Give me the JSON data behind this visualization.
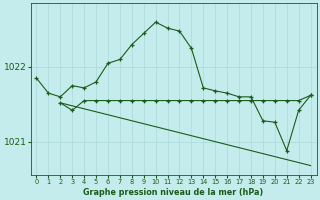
{
  "title": "Graphe pression niveau de la mer (hPa)",
  "background_color": "#c5eced",
  "grid_color": "#aad8da",
  "line_color": "#1a5c1a",
  "x_ticks": [
    0,
    1,
    2,
    3,
    4,
    5,
    6,
    7,
    8,
    9,
    10,
    11,
    12,
    13,
    14,
    15,
    16,
    17,
    18,
    19,
    20,
    21,
    22,
    23
  ],
  "ylim": [
    1020.55,
    1022.85
  ],
  "yticks": [
    1021,
    1022
  ],
  "series1": {
    "x": [
      0,
      1,
      2,
      3,
      4,
      5,
      6,
      7,
      8,
      9,
      10,
      11,
      12,
      13,
      14,
      15,
      16,
      17,
      18,
      19,
      20,
      21,
      22,
      23
    ],
    "y": [
      1021.85,
      1021.65,
      1021.6,
      1021.75,
      1021.72,
      1021.8,
      1022.05,
      1022.1,
      1022.3,
      1022.45,
      1022.6,
      1022.52,
      1022.48,
      1022.25,
      1021.72,
      1021.68,
      1021.65,
      1021.6,
      1021.6,
      1021.28,
      1021.26,
      1020.88,
      1021.42,
      1021.62
    ]
  },
  "series2": {
    "x": [
      2,
      3,
      4,
      5,
      6,
      7,
      8,
      9,
      10,
      11,
      12,
      13,
      14,
      15,
      16,
      17,
      18,
      19,
      20,
      21,
      22,
      23
    ],
    "y": [
      1021.52,
      1021.42,
      1021.55,
      1021.55,
      1021.55,
      1021.55,
      1021.55,
      1021.55,
      1021.55,
      1021.55,
      1021.55,
      1021.55,
      1021.55,
      1021.55,
      1021.55,
      1021.55,
      1021.55,
      1021.55,
      1021.55,
      1021.55,
      1021.55,
      1021.62
    ]
  },
  "series3": {
    "x": [
      2,
      23
    ],
    "y": [
      1021.52,
      1020.68
    ]
  },
  "ylabel_left_offset": 0.08,
  "figsize": [
    3.2,
    2.0
  ],
  "dpi": 100
}
